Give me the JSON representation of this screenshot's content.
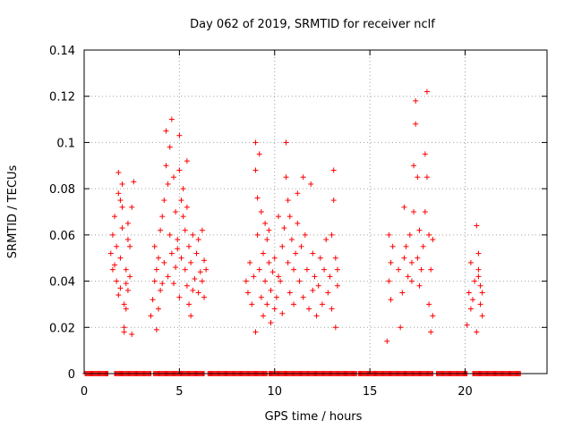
{
  "chart_data": {
    "type": "scatter",
    "title": "Day 062 of 2019, SRMTID for receiver nclf",
    "xlabel": "GPS time / hours",
    "ylabel": "SRMTID / TECUs",
    "xlim": [
      0,
      24.3
    ],
    "ylim": [
      0,
      0.14
    ],
    "xticks": [
      0,
      5,
      10,
      15,
      20
    ],
    "xtick_labels": [
      "0",
      "5",
      "10",
      "15",
      "20"
    ],
    "yticks": [
      0,
      0.02,
      0.04,
      0.06,
      0.08,
      0.1,
      0.12,
      0.14
    ],
    "ytick_labels": [
      "0",
      "0.02",
      "0.04",
      "0.06",
      "0.08",
      "0.1",
      "0.12",
      "0.14"
    ],
    "grid": true,
    "marker": "+",
    "color": "#ff0000",
    "series": [
      {
        "name": "SRMTID",
        "points": [
          [
            1.4,
            0.052
          ],
          [
            1.5,
            0.06
          ],
          [
            1.5,
            0.045
          ],
          [
            1.6,
            0.068
          ],
          [
            1.7,
            0.04
          ],
          [
            1.7,
            0.055
          ],
          [
            1.8,
            0.087
          ],
          [
            1.8,
            0.078
          ],
          [
            1.9,
            0.05
          ],
          [
            1.9,
            0.037
          ],
          [
            2.0,
            0.063
          ],
          [
            2.0,
            0.072
          ],
          [
            2.0,
            0.082
          ],
          [
            2.1,
            0.02
          ],
          [
            2.1,
            0.018
          ],
          [
            2.1,
            0.03
          ],
          [
            2.2,
            0.045
          ],
          [
            2.2,
            0.039
          ],
          [
            2.3,
            0.058
          ],
          [
            2.3,
            0.036
          ],
          [
            2.4,
            0.055
          ],
          [
            2.4,
            0.042
          ],
          [
            2.5,
            0.072
          ],
          [
            2.5,
            0.017
          ],
          [
            2.6,
            0.083
          ],
          [
            1.6,
            0.047
          ],
          [
            1.8,
            0.034
          ],
          [
            2.2,
            0.028
          ],
          [
            2.3,
            0.065
          ],
          [
            1.9,
            0.075
          ],
          [
            3.5,
            0.025
          ],
          [
            3.6,
            0.032
          ],
          [
            3.7,
            0.04
          ],
          [
            3.7,
            0.055
          ],
          [
            3.8,
            0.045
          ],
          [
            3.8,
            0.019
          ],
          [
            3.9,
            0.05
          ],
          [
            4.0,
            0.062
          ],
          [
            4.0,
            0.036
          ],
          [
            4.1,
            0.068
          ],
          [
            4.2,
            0.075
          ],
          [
            4.2,
            0.048
          ],
          [
            4.3,
            0.09
          ],
          [
            4.3,
            0.105
          ],
          [
            4.4,
            0.082
          ],
          [
            4.4,
            0.042
          ],
          [
            4.5,
            0.098
          ],
          [
            4.5,
            0.06
          ],
          [
            4.6,
            0.11
          ],
          [
            4.6,
            0.052
          ],
          [
            4.7,
            0.085
          ],
          [
            4.7,
            0.039
          ],
          [
            4.8,
            0.07
          ],
          [
            4.8,
            0.046
          ],
          [
            4.9,
            0.058
          ],
          [
            5.0,
            0.103
          ],
          [
            5.0,
            0.088
          ],
          [
            5.0,
            0.033
          ],
          [
            5.1,
            0.075
          ],
          [
            5.1,
            0.05
          ],
          [
            5.2,
            0.068
          ],
          [
            5.2,
            0.08
          ],
          [
            5.3,
            0.062
          ],
          [
            5.3,
            0.045
          ],
          [
            5.4,
            0.072
          ],
          [
            5.4,
            0.038
          ],
          [
            5.5,
            0.055
          ],
          [
            5.5,
            0.03
          ],
          [
            5.6,
            0.048
          ],
          [
            5.6,
            0.025
          ],
          [
            5.7,
            0.036
          ],
          [
            5.7,
            0.06
          ],
          [
            5.8,
            0.041
          ],
          [
            5.9,
            0.052
          ],
          [
            6.0,
            0.035
          ],
          [
            6.0,
            0.058
          ],
          [
            6.1,
            0.044
          ],
          [
            6.2,
            0.04
          ],
          [
            6.2,
            0.062
          ],
          [
            6.3,
            0.049
          ],
          [
            6.3,
            0.033
          ],
          [
            6.4,
            0.045
          ],
          [
            3.9,
            0.028
          ],
          [
            4.1,
            0.039
          ],
          [
            4.9,
            0.054
          ],
          [
            5.4,
            0.092
          ],
          [
            8.5,
            0.04
          ],
          [
            8.6,
            0.035
          ],
          [
            8.7,
            0.048
          ],
          [
            8.8,
            0.03
          ],
          [
            8.9,
            0.042
          ],
          [
            9.0,
            0.1
          ],
          [
            9.0,
            0.088
          ],
          [
            9.1,
            0.076
          ],
          [
            9.1,
            0.06
          ],
          [
            9.2,
            0.095
          ],
          [
            9.2,
            0.045
          ],
          [
            9.3,
            0.033
          ],
          [
            9.3,
            0.07
          ],
          [
            9.4,
            0.052
          ],
          [
            9.4,
            0.025
          ],
          [
            9.5,
            0.065
          ],
          [
            9.5,
            0.04
          ],
          [
            9.6,
            0.058
          ],
          [
            9.6,
            0.03
          ],
          [
            9.7,
            0.048
          ],
          [
            9.8,
            0.022
          ],
          [
            9.8,
            0.036
          ],
          [
            9.9,
            0.044
          ],
          [
            10.0,
            0.028
          ],
          [
            10.0,
            0.05
          ],
          [
            10.1,
            0.033
          ],
          [
            10.2,
            0.042
          ],
          [
            10.3,
            0.04
          ],
          [
            10.4,
            0.055
          ],
          [
            10.4,
            0.026
          ],
          [
            10.5,
            0.063
          ],
          [
            10.6,
            0.1
          ],
          [
            10.6,
            0.085
          ],
          [
            10.7,
            0.075
          ],
          [
            10.7,
            0.048
          ],
          [
            10.8,
            0.068
          ],
          [
            10.8,
            0.035
          ],
          [
            10.9,
            0.058
          ],
          [
            11.0,
            0.045
          ],
          [
            11.0,
            0.03
          ],
          [
            11.1,
            0.052
          ],
          [
            11.2,
            0.078
          ],
          [
            11.2,
            0.065
          ],
          [
            11.3,
            0.04
          ],
          [
            11.4,
            0.055
          ],
          [
            11.5,
            0.085
          ],
          [
            11.5,
            0.033
          ],
          [
            11.6,
            0.06
          ],
          [
            11.7,
            0.045
          ],
          [
            11.8,
            0.028
          ],
          [
            11.9,
            0.082
          ],
          [
            12.0,
            0.052
          ],
          [
            12.0,
            0.036
          ],
          [
            12.1,
            0.042
          ],
          [
            12.2,
            0.025
          ],
          [
            12.3,
            0.038
          ],
          [
            12.4,
            0.05
          ],
          [
            12.5,
            0.03
          ],
          [
            12.6,
            0.045
          ],
          [
            12.7,
            0.058
          ],
          [
            12.8,
            0.035
          ],
          [
            12.9,
            0.042
          ],
          [
            13.0,
            0.06
          ],
          [
            13.0,
            0.028
          ],
          [
            13.1,
            0.075
          ],
          [
            13.1,
            0.088
          ],
          [
            13.2,
            0.05
          ],
          [
            13.2,
            0.02
          ],
          [
            13.3,
            0.045
          ],
          [
            13.3,
            0.038
          ],
          [
            9.0,
            0.018
          ],
          [
            9.7,
            0.062
          ],
          [
            10.2,
            0.068
          ],
          [
            15.9,
            0.014
          ],
          [
            16.0,
            0.06
          ],
          [
            16.0,
            0.04
          ],
          [
            16.1,
            0.032
          ],
          [
            16.1,
            0.048
          ],
          [
            16.2,
            0.055
          ],
          [
            16.5,
            0.045
          ],
          [
            16.6,
            0.02
          ],
          [
            16.7,
            0.035
          ],
          [
            16.8,
            0.05
          ],
          [
            16.9,
            0.055
          ],
          [
            17.0,
            0.042
          ],
          [
            17.1,
            0.06
          ],
          [
            17.2,
            0.048
          ],
          [
            17.3,
            0.07
          ],
          [
            17.3,
            0.09
          ],
          [
            17.4,
            0.118
          ],
          [
            17.4,
            0.108
          ],
          [
            17.5,
            0.085
          ],
          [
            17.5,
            0.05
          ],
          [
            17.6,
            0.062
          ],
          [
            17.6,
            0.038
          ],
          [
            17.7,
            0.045
          ],
          [
            17.8,
            0.055
          ],
          [
            17.9,
            0.095
          ],
          [
            17.9,
            0.07
          ],
          [
            18.0,
            0.122
          ],
          [
            18.0,
            0.085
          ],
          [
            18.1,
            0.06
          ],
          [
            18.1,
            0.03
          ],
          [
            18.2,
            0.018
          ],
          [
            18.2,
            0.045
          ],
          [
            18.3,
            0.058
          ],
          [
            18.3,
            0.025
          ],
          [
            16.8,
            0.072
          ],
          [
            17.2,
            0.04
          ],
          [
            20.1,
            0.021
          ],
          [
            20.2,
            0.035
          ],
          [
            20.3,
            0.048
          ],
          [
            20.3,
            0.028
          ],
          [
            20.4,
            0.032
          ],
          [
            20.5,
            0.04
          ],
          [
            20.6,
            0.064
          ],
          [
            20.6,
            0.018
          ],
          [
            20.7,
            0.052
          ],
          [
            20.7,
            0.045
          ],
          [
            20.8,
            0.038
          ],
          [
            20.8,
            0.03
          ],
          [
            20.9,
            0.035
          ],
          [
            20.9,
            0.025
          ],
          [
            20.7,
            0.042
          ]
        ]
      }
    ],
    "zero_bands": [
      [
        0.05,
        1.25
      ],
      [
        1.6,
        3.5
      ],
      [
        3.65,
        6.3
      ],
      [
        6.5,
        9.6
      ],
      [
        9.7,
        14.3
      ],
      [
        14.4,
        18.3
      ],
      [
        18.5,
        20.1
      ],
      [
        20.4,
        22.9
      ]
    ]
  }
}
